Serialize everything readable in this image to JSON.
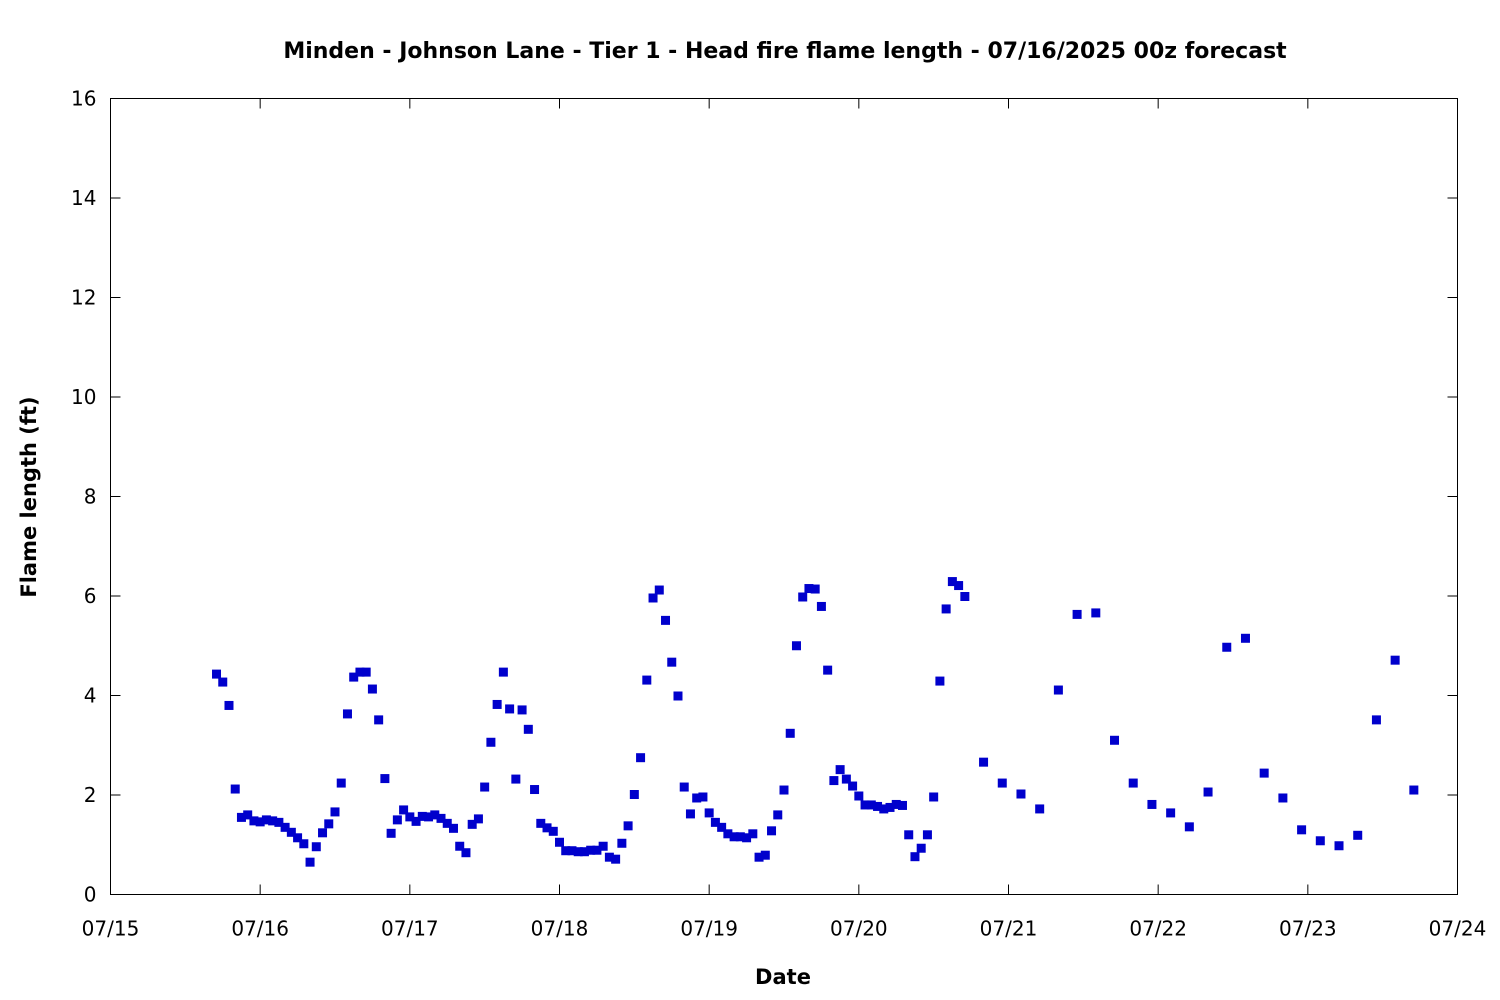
{
  "chart_data": {
    "type": "scatter",
    "title": "Minden - Johnson Lane - Tier 1 - Head fire flame length - 07/16/2025 00z forecast",
    "xlabel": "Date",
    "ylabel": "Flame length (ft)",
    "xlim": [
      "07/15 00:00",
      "07/24 00:00"
    ],
    "ylim": [
      0,
      16
    ],
    "x_ticks": [
      "07/15",
      "07/16",
      "07/17",
      "07/18",
      "07/19",
      "07/20",
      "07/21",
      "07/22",
      "07/23",
      "07/24"
    ],
    "y_ticks": [
      "0",
      "2",
      "4",
      "6",
      "8",
      "10",
      "12",
      "14",
      "16"
    ],
    "grid": false,
    "marker_color": "#0000cc",
    "points": [
      [
        "07/15 17:00",
        4.43
      ],
      [
        "07/15 18:00",
        4.27
      ],
      [
        "07/15 19:00",
        3.8
      ],
      [
        "07/15 20:00",
        2.12
      ],
      [
        "07/15 21:00",
        1.55
      ],
      [
        "07/15 22:00",
        1.6
      ],
      [
        "07/15 23:00",
        1.48
      ],
      [
        "07/16 00:00",
        1.46
      ],
      [
        "07/16 01:00",
        1.5
      ],
      [
        "07/16 02:00",
        1.48
      ],
      [
        "07/16 03:00",
        1.45
      ],
      [
        "07/16 04:00",
        1.35
      ],
      [
        "07/16 05:00",
        1.25
      ],
      [
        "07/16 06:00",
        1.14
      ],
      [
        "07/16 07:00",
        1.02
      ],
      [
        "07/16 08:00",
        0.65
      ],
      [
        "07/16 09:00",
        0.96
      ],
      [
        "07/16 10:00",
        1.24
      ],
      [
        "07/16 11:00",
        1.42
      ],
      [
        "07/16 12:00",
        1.66
      ],
      [
        "07/16 13:00",
        2.24
      ],
      [
        "07/16 14:00",
        3.63
      ],
      [
        "07/16 15:00",
        4.37
      ],
      [
        "07/16 16:00",
        4.47
      ],
      [
        "07/16 17:00",
        4.47
      ],
      [
        "07/16 18:00",
        4.13
      ],
      [
        "07/16 19:00",
        3.51
      ],
      [
        "07/16 20:00",
        2.33
      ],
      [
        "07/16 21:00",
        1.23
      ],
      [
        "07/16 22:00",
        1.5
      ],
      [
        "07/16 23:00",
        1.7
      ],
      [
        "07/17 00:00",
        1.56
      ],
      [
        "07/17 01:00",
        1.47
      ],
      [
        "07/17 02:00",
        1.57
      ],
      [
        "07/17 03:00",
        1.56
      ],
      [
        "07/17 04:00",
        1.6
      ],
      [
        "07/17 05:00",
        1.53
      ],
      [
        "07/17 06:00",
        1.43
      ],
      [
        "07/17 07:00",
        1.33
      ],
      [
        "07/17 08:00",
        0.97
      ],
      [
        "07/17 09:00",
        0.84
      ],
      [
        "07/17 10:00",
        1.41
      ],
      [
        "07/17 11:00",
        1.52
      ],
      [
        "07/17 12:00",
        2.16
      ],
      [
        "07/17 13:00",
        3.06
      ],
      [
        "07/17 14:00",
        3.82
      ],
      [
        "07/17 15:00",
        4.47
      ],
      [
        "07/17 16:00",
        3.73
      ],
      [
        "07/17 17:00",
        2.32
      ],
      [
        "07/17 18:00",
        3.71
      ],
      [
        "07/17 19:00",
        3.32
      ],
      [
        "07/17 20:00",
        2.11
      ],
      [
        "07/17 21:00",
        1.43
      ],
      [
        "07/17 22:00",
        1.34
      ],
      [
        "07/17 23:00",
        1.27
      ],
      [
        "07/18 00:00",
        1.05
      ],
      [
        "07/18 01:00",
        0.88
      ],
      [
        "07/18 02:00",
        0.88
      ],
      [
        "07/18 03:00",
        0.86
      ],
      [
        "07/18 04:00",
        0.86
      ],
      [
        "07/18 05:00",
        0.89
      ],
      [
        "07/18 06:00",
        0.89
      ],
      [
        "07/18 07:00",
        0.97
      ],
      [
        "07/18 08:00",
        0.75
      ],
      [
        "07/18 09:00",
        0.71
      ],
      [
        "07/18 10:00",
        1.03
      ],
      [
        "07/18 11:00",
        1.38
      ],
      [
        "07/18 12:00",
        2.01
      ],
      [
        "07/18 13:00",
        2.75
      ],
      [
        "07/18 14:00",
        4.31
      ],
      [
        "07/18 15:00",
        5.96
      ],
      [
        "07/18 16:00",
        6.12
      ],
      [
        "07/18 17:00",
        5.51
      ],
      [
        "07/18 18:00",
        4.67
      ],
      [
        "07/18 19:00",
        3.99
      ],
      [
        "07/18 20:00",
        2.16
      ],
      [
        "07/18 21:00",
        1.62
      ],
      [
        "07/18 22:00",
        1.94
      ],
      [
        "07/18 23:00",
        1.96
      ],
      [
        "07/19 00:00",
        1.64
      ],
      [
        "07/19 01:00",
        1.45
      ],
      [
        "07/19 02:00",
        1.35
      ],
      [
        "07/19 03:00",
        1.22
      ],
      [
        "07/19 04:00",
        1.16
      ],
      [
        "07/19 05:00",
        1.16
      ],
      [
        "07/19 06:00",
        1.14
      ],
      [
        "07/19 07:00",
        1.22
      ],
      [
        "07/19 08:00",
        0.75
      ],
      [
        "07/19 09:00",
        0.79
      ],
      [
        "07/19 10:00",
        1.28
      ],
      [
        "07/19 11:00",
        1.6
      ],
      [
        "07/19 12:00",
        2.1
      ],
      [
        "07/19 13:00",
        3.24
      ],
      [
        "07/19 14:00",
        5.0
      ],
      [
        "07/19 15:00",
        5.98
      ],
      [
        "07/19 16:00",
        6.15
      ],
      [
        "07/19 17:00",
        6.14
      ],
      [
        "07/19 18:00",
        5.79
      ],
      [
        "07/19 19:00",
        4.51
      ],
      [
        "07/19 20:00",
        2.29
      ],
      [
        "07/19 21:00",
        2.51
      ],
      [
        "07/19 22:00",
        2.32
      ],
      [
        "07/19 23:00",
        2.18
      ],
      [
        "07/20 00:00",
        1.98
      ],
      [
        "07/20 01:00",
        1.8
      ],
      [
        "07/20 02:00",
        1.8
      ],
      [
        "07/20 03:00",
        1.77
      ],
      [
        "07/20 04:00",
        1.72
      ],
      [
        "07/20 05:00",
        1.75
      ],
      [
        "07/20 06:00",
        1.81
      ],
      [
        "07/20 07:00",
        1.79
      ],
      [
        "07/20 08:00",
        1.2
      ],
      [
        "07/20 09:00",
        0.76
      ],
      [
        "07/20 10:00",
        0.93
      ],
      [
        "07/20 11:00",
        1.2
      ],
      [
        "07/20 12:00",
        1.96
      ],
      [
        "07/20 13:00",
        4.29
      ],
      [
        "07/20 14:00",
        5.74
      ],
      [
        "07/20 15:00",
        6.29
      ],
      [
        "07/20 16:00",
        6.21
      ],
      [
        "07/20 17:00",
        5.99
      ],
      [
        "07/20 20:00",
        2.66
      ],
      [
        "07/20 23:00",
        2.24
      ],
      [
        "07/21 02:00",
        2.02
      ],
      [
        "07/21 05:00",
        1.72
      ],
      [
        "07/21 08:00",
        4.11
      ],
      [
        "07/21 11:00",
        5.63
      ],
      [
        "07/21 14:00",
        5.66
      ],
      [
        "07/21 17:00",
        3.1
      ],
      [
        "07/21 20:00",
        2.24
      ],
      [
        "07/21 23:00",
        1.81
      ],
      [
        "07/22 02:00",
        1.64
      ],
      [
        "07/22 05:00",
        1.36
      ],
      [
        "07/22 08:00",
        2.06
      ],
      [
        "07/22 11:00",
        4.97
      ],
      [
        "07/22 14:00",
        5.15
      ],
      [
        "07/22 17:00",
        2.44
      ],
      [
        "07/22 20:00",
        1.94
      ],
      [
        "07/22 23:00",
        1.3
      ],
      [
        "07/23 02:00",
        1.08
      ],
      [
        "07/23 05:00",
        0.98
      ],
      [
        "07/23 08:00",
        1.19
      ],
      [
        "07/23 11:00",
        3.51
      ],
      [
        "07/23 14:00",
        4.71
      ],
      [
        "07/23 17:00",
        2.1
      ]
    ]
  }
}
